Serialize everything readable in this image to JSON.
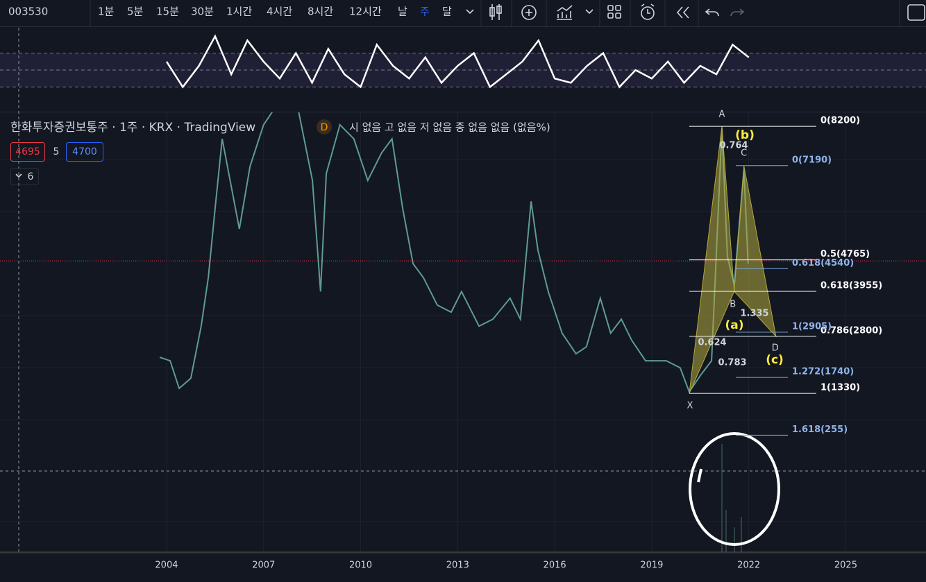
{
  "toolbar": {
    "symbol": "003530",
    "intervals": [
      {
        "label": "1분",
        "active": false
      },
      {
        "label": "5분",
        "active": false
      },
      {
        "label": "15분",
        "active": false
      },
      {
        "label": "30분",
        "active": false
      },
      {
        "label": "1시간",
        "active": false
      },
      {
        "label": "4시간",
        "active": false
      },
      {
        "label": "8시간",
        "active": false
      },
      {
        "label": "12시간",
        "active": false
      },
      {
        "label": "날",
        "active": false
      },
      {
        "label": "주",
        "active": true
      },
      {
        "label": "달",
        "active": false
      }
    ]
  },
  "legend": {
    "title": "한화투자증권보통주 · 1주 · KRX · TradingView",
    "badge": "D",
    "ohlc": "시 없음 고 없음 저 없음 종 없음 없음 (없음%)",
    "bid": 4695,
    "spread": 5,
    "ask": 4700,
    "indicators": 6
  },
  "chart_data": {
    "type": "line",
    "color": "#5e9c92",
    "x": [
      2003.79,
      2004.11,
      2004.39,
      2004.75,
      2005.07,
      2005.29,
      2005.5,
      2005.72,
      2006.25,
      2006.58,
      2007.0,
      2007.43,
      2008.08,
      2008.51,
      2008.76,
      2008.94,
      2009.36,
      2009.79,
      2010.22,
      2010.65,
      2010.97,
      2011.3,
      2011.62,
      2011.94,
      2012.37,
      2012.8,
      2013.12,
      2013.66,
      2014.09,
      2014.62,
      2014.94,
      2015.27,
      2015.48,
      2015.8,
      2016.23,
      2016.66,
      2016.98,
      2017.41,
      2017.73,
      2018.06,
      2018.38,
      2018.81,
      2019.45,
      2019.88,
      2020.16,
      2020.52,
      2020.85,
      2021.17,
      2021.34,
      2021.55,
      2021.85,
      2021.98
    ],
    "values": [
      2260,
      2170,
      1460,
      1720,
      3060,
      4310,
      6090,
      7880,
      5560,
      7170,
      8240,
      8770,
      8590,
      6810,
      3950,
      6990,
      8240,
      7880,
      6810,
      7520,
      7880,
      6090,
      4670,
      4310,
      3600,
      3420,
      3950,
      3060,
      3240,
      3780,
      3240,
      6270,
      5020,
      3950,
      2880,
      2350,
      2530,
      3780,
      2880,
      3240,
      2700,
      2170,
      2170,
      1990,
      1370,
      1810,
      2170,
      8150,
      4850,
      4130,
      7080,
      4670
    ],
    "xlim": [
      1998.85,
      2027.48
    ],
    "ylim": [
      -2790,
      8560
    ],
    "xticks": [
      2004,
      2007,
      2010,
      2013,
      2016,
      2019,
      2022,
      2025
    ],
    "last_price": 4738,
    "fib_white": [
      {
        "value": 8200,
        "label": "0(8200)"
      },
      {
        "value": 4765,
        "label": "0.5(4765)"
      },
      {
        "value": 3955,
        "label": "0.618(3955)"
      },
      {
        "value": 2800,
        "label": "0.786(2800)"
      },
      {
        "value": 1330,
        "label": "1(1330)"
      }
    ],
    "fib_blue": [
      {
        "value": 7190,
        "label": "0(7190)"
      },
      {
        "value": 4540,
        "label": "0.618(4540)"
      },
      {
        "value": 2905,
        "label": "1(2905)"
      },
      {
        "value": 1740,
        "label": "1.272(1740)"
      },
      {
        "value": 255,
        "label": "1.618(255)"
      }
    ],
    "pattern": [
      {
        "label": "X",
        "x": 2020.16,
        "y": 1330
      },
      {
        "label": "A",
        "x": 2021.17,
        "y": 8200
      },
      {
        "label": "B",
        "x": 2021.55,
        "y": 3955
      },
      {
        "label": "C",
        "x": 2021.85,
        "y": 7190
      },
      {
        "label": "D",
        "x": 2022.84,
        "y": 2800
      }
    ],
    "ratios": [
      "0.764",
      "0.624",
      "1.335",
      "0.783"
    ],
    "waves": [
      "(a)",
      "(b)",
      "(c)"
    ],
    "oscillator": {
      "x": [
        2004,
        2004.5,
        2005,
        2005.5,
        2006,
        2006.5,
        2007,
        2007.5,
        2008,
        2008.5,
        2009,
        2009.5,
        2010,
        2010.5,
        2011,
        2011.5,
        2012,
        2012.5,
        2013,
        2013.5,
        2014,
        2014.5,
        2015,
        2015.5,
        2016,
        2016.5,
        2017,
        2017.5,
        2018,
        2018.5,
        2019,
        2019.5,
        2020,
        2020.5,
        2021,
        2021.5,
        2022
      ],
      "values": [
        60,
        30,
        55,
        90,
        45,
        85,
        60,
        40,
        70,
        35,
        75,
        45,
        30,
        80,
        55,
        40,
        65,
        35,
        55,
        70,
        30,
        45,
        60,
        85,
        40,
        35,
        55,
        70,
        30,
        50,
        40,
        60,
        35,
        55,
        45,
        80,
        65
      ],
      "ylim": [
        0,
        100
      ],
      "levels": [
        70,
        50,
        30
      ]
    }
  }
}
